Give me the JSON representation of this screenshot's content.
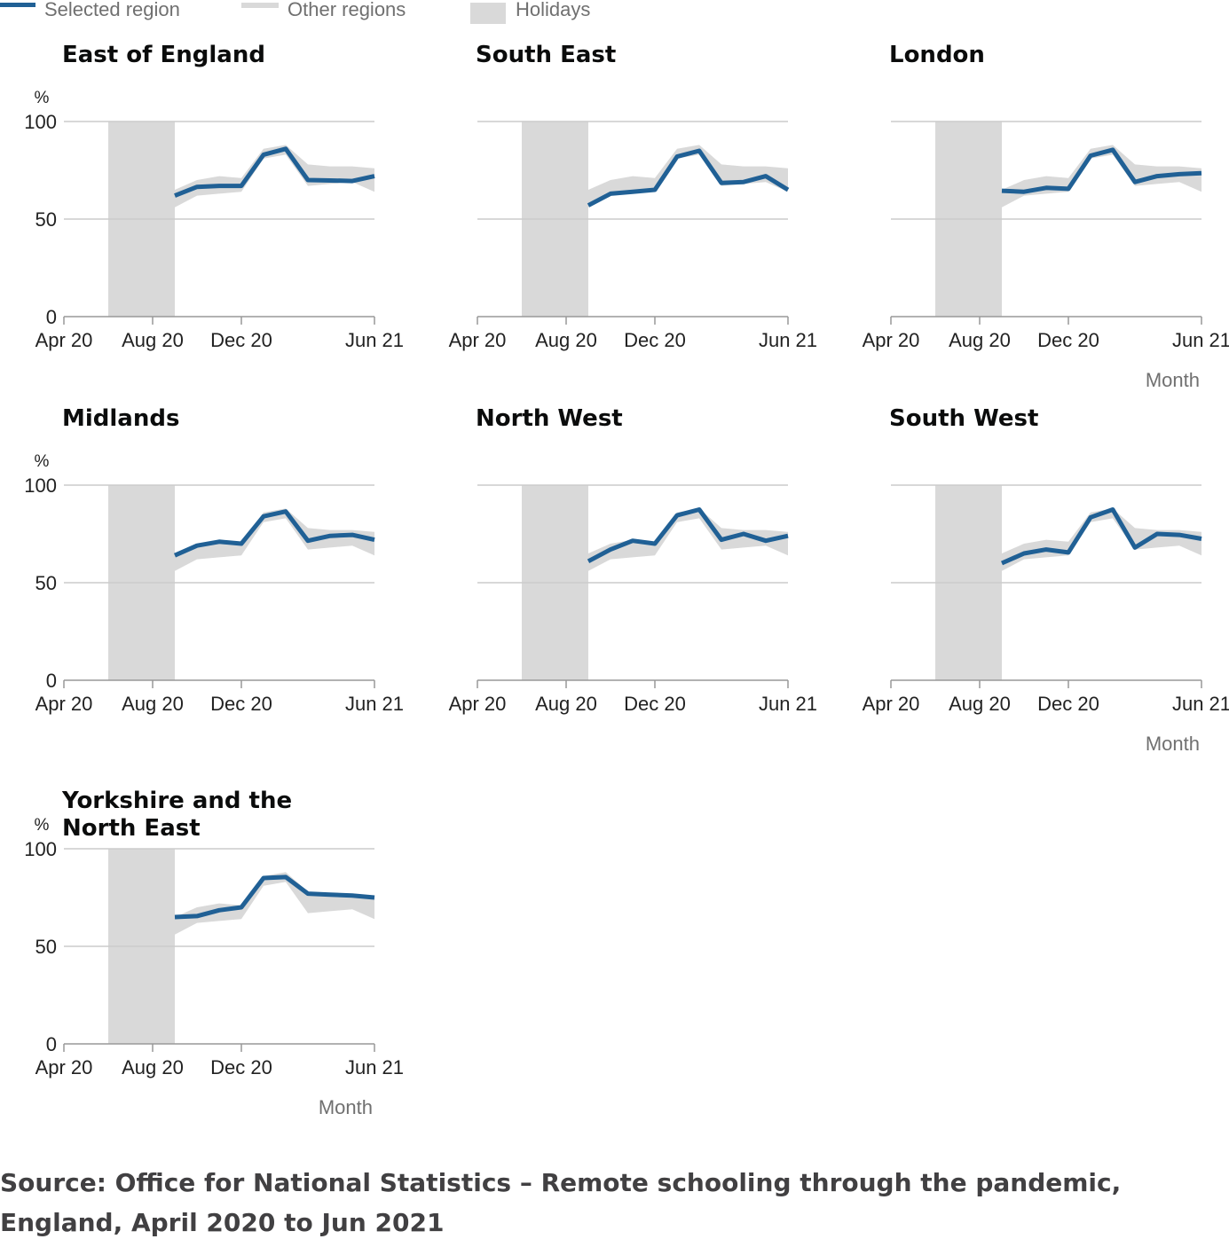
{
  "legend": {
    "selected_label": "Selected region",
    "other_label": "Other regions",
    "holidays_label": "Holidays"
  },
  "colors": {
    "selected": "#206095",
    "other": "#d9d9d9",
    "holidays": "#d9d9d9",
    "gridline": "#cccccc",
    "axis": "#999999"
  },
  "chart_data": {
    "type": "line",
    "facet": "small-multiples",
    "y_unit": "%",
    "ylim": [
      0,
      100
    ],
    "y_ticks": [
      0,
      50,
      100
    ],
    "x_axis_title": "Month",
    "x_range": [
      "Apr 20",
      "Jun 21"
    ],
    "x_ticks": [
      "Apr 20",
      "Aug 20",
      "Dec 20",
      "Jun 21"
    ],
    "x_months": [
      "Sep 20",
      "Oct 20",
      "Nov 20",
      "Dec 20",
      "Jan 21",
      "Feb 21",
      "Mar 21",
      "Apr 21",
      "May 21",
      "Jun 21"
    ],
    "holidays": {
      "start": "Jun 20",
      "end": "Sep 20"
    },
    "other_regions_band": {
      "min": [
        56,
        62,
        63,
        64,
        81,
        83,
        67,
        68,
        69,
        64
      ],
      "max": [
        65,
        70,
        72,
        71,
        86,
        88,
        78,
        77,
        77,
        76
      ]
    },
    "regions": [
      {
        "name": "East of England",
        "values": [
          62,
          66.5,
          67,
          67,
          83,
          86,
          70,
          69.8,
          69.5,
          72
        ]
      },
      {
        "name": "South East",
        "values": [
          57,
          63,
          64,
          65,
          82,
          85,
          68.5,
          69,
          72,
          65
        ]
      },
      {
        "name": "London",
        "values": [
          64.5,
          64,
          66,
          65.5,
          82.5,
          85.5,
          69,
          72,
          73,
          73.5
        ]
      },
      {
        "name": "Midlands",
        "values": [
          64,
          69,
          71,
          70,
          84,
          86.5,
          71.5,
          74,
          74.5,
          72
        ]
      },
      {
        "name": "North West",
        "values": [
          61,
          67,
          71.5,
          70,
          84.5,
          87.5,
          72,
          75,
          71.5,
          74
        ]
      },
      {
        "name": "South West",
        "values": [
          60,
          65,
          67,
          65.5,
          83.5,
          87.5,
          68,
          75,
          74.5,
          72.5
        ]
      },
      {
        "name": "Yorkshire and the North East",
        "values": [
          65,
          65.5,
          68.5,
          70,
          85,
          85.5,
          77,
          76.5,
          76,
          75
        ]
      }
    ]
  },
  "source": {
    "line1": "Source: Office for National Statistics – Remote schooling through the pandemic,",
    "line2": "England, April 2020 to Jun 2021"
  }
}
